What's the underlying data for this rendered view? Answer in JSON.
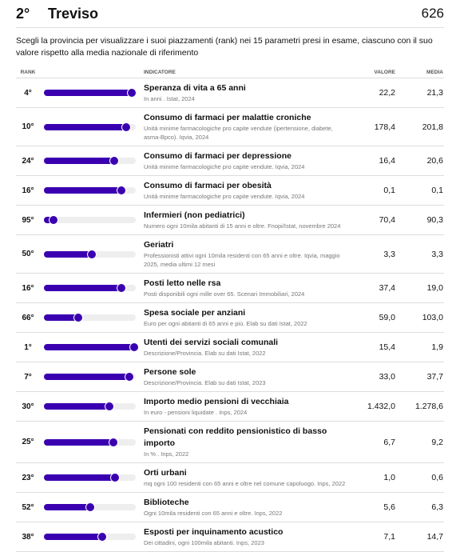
{
  "header": {
    "rank": "2°",
    "title": "Treviso",
    "score": "626"
  },
  "description": "Scegli la provincia per visualizzare i suoi piazzamenti (rank) nei 15 parametri presi in esame, ciascuno con il suo valore rispetto alla media nazionale di riferimento",
  "columns": {
    "rank": "RANK",
    "indicator": "INDICATORE",
    "value": "VALORE",
    "mean": "MEDIA"
  },
  "rows": [
    {
      "rank": "4°",
      "title": "Speranza di vita a 65 anni",
      "note": "In anni . Istat, 2024",
      "value": "22,2",
      "mean": "21,3"
    },
    {
      "rank": "10°",
      "title": "Consumo di farmaci per malattie croniche",
      "note": "Unità minime farmacologiche pro capite vendute (ipertensione, diabete, asma-Bpco). Iqvia, 2024",
      "value": "178,4",
      "mean": "201,8"
    },
    {
      "rank": "24°",
      "title": "Consumo di farmaci per depressione",
      "note": "Unità minime farmacologiche pro capite vendute. Iqvia, 2024",
      "value": "16,4",
      "mean": "20,6"
    },
    {
      "rank": "16°",
      "title": "Consumo di farmaci per obesità",
      "note": "Unità minime farmacologiche pro capite vendute. Iqvia, 2024",
      "value": "0,1",
      "mean": "0,1"
    },
    {
      "rank": "95°",
      "title": "Infermieri (non pediatrici)",
      "note": "Numero ogni 10mila abitanti di 15 anni e oltre. Fnopi/Istat, novembre 2024",
      "value": "70,4",
      "mean": "90,3"
    },
    {
      "rank": "50°",
      "title": "Geriatri",
      "note": "Professionisti attivi ogni 10mila residenti con 65 anni e oltre. Iqvia, maggio 2025, media ultimi 12 mesi",
      "value": "3,3",
      "mean": "3,3"
    },
    {
      "rank": "16°",
      "title": "Posti letto nelle rsa",
      "note": "Posti disponibili ogni mille over 65. Scenari Immobiliari, 2024",
      "value": "37,4",
      "mean": "19,0"
    },
    {
      "rank": "66°",
      "title": "Spesa sociale per anziani",
      "note": "Euro per ogni abitanti di 65 anni e più. Elab su dati Istat, 2022",
      "value": "59,0",
      "mean": "103,0"
    },
    {
      "rank": "1°",
      "title": "Utenti dei servizi sociali comunali",
      "note": "Descrizione/Provincia. Elab su dati Istat, 2022",
      "value": "15,4",
      "mean": "1,9"
    },
    {
      "rank": "7°",
      "title": "Persone sole",
      "note": "Descrizione/Provincia. Elab su dati Istat, 2023",
      "value": "33,0",
      "mean": "37,7"
    },
    {
      "rank": "30°",
      "title": "Importo medio pensioni di vecchiaia",
      "note": "In euro - pensioni liquidate . Inps, 2024",
      "value": "1.432,0",
      "mean": "1.278,6"
    },
    {
      "rank": "25°",
      "title": "Pensionati con reddito pensionistico di basso importo",
      "note": "In % . Inps, 2022",
      "value": "6,7",
      "mean": "9,2"
    },
    {
      "rank": "23°",
      "title": "Orti urbani",
      "note": "mq ogni 100 residenti con 65 anni e oltre nel comune capoluogo. Inps, 2022",
      "value": "1,0",
      "mean": "0,6"
    },
    {
      "rank": "52°",
      "title": "Biblioteche",
      "note": "Ogni 10mila residenti con 65 anni e oltre. Inps, 2022",
      "value": "5,6",
      "mean": "6,3"
    },
    {
      "rank": "38°",
      "title": "Esposti per inquinamento acustico",
      "note": "Dei cittadini, ogni 100mila abitanti. Inps, 2023",
      "value": "7,1",
      "mean": "14,7"
    }
  ]
}
